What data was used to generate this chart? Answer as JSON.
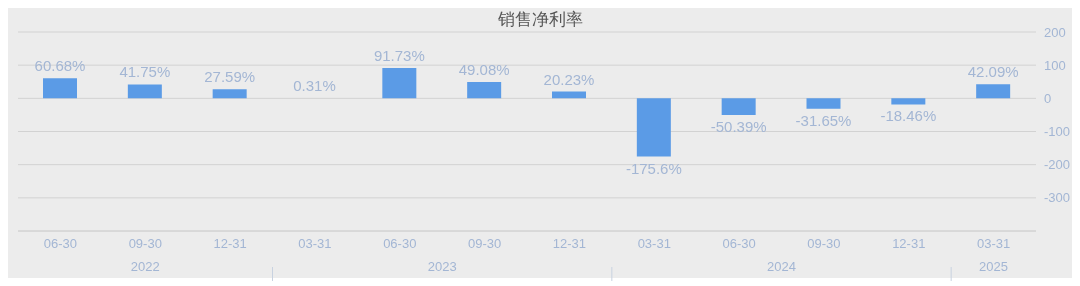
{
  "chart_data": {
    "type": "bar",
    "title": "销售净利率",
    "categories": [
      "06-30",
      "09-30",
      "12-31",
      "03-31",
      "06-30",
      "09-30",
      "12-31",
      "03-31",
      "06-30",
      "09-30",
      "12-31",
      "03-31"
    ],
    "annotations": [
      "2022",
      "2023",
      "2024",
      "2025"
    ],
    "values": [
      60.68,
      41.75,
      27.59,
      0.31,
      91.73,
      49.08,
      20.23,
      -175.6,
      -50.39,
      -31.65,
      -18.46,
      42.09
    ],
    "value_labels": [
      "60.68%",
      "41.75%",
      "27.59%",
      "0.31%",
      "91.73%",
      "49.08%",
      "20.23%",
      "-175.6%",
      "-50.39%",
      "-31.65%",
      "-18.46%",
      "42.09%"
    ],
    "color": "#5b9be6",
    "ylim": [
      -400,
      200
    ],
    "yticks": [
      200,
      100,
      0,
      -100,
      -200,
      -300,
      {
        "value": -400,
        "label": null
      }
    ],
    "grid": "y"
  }
}
